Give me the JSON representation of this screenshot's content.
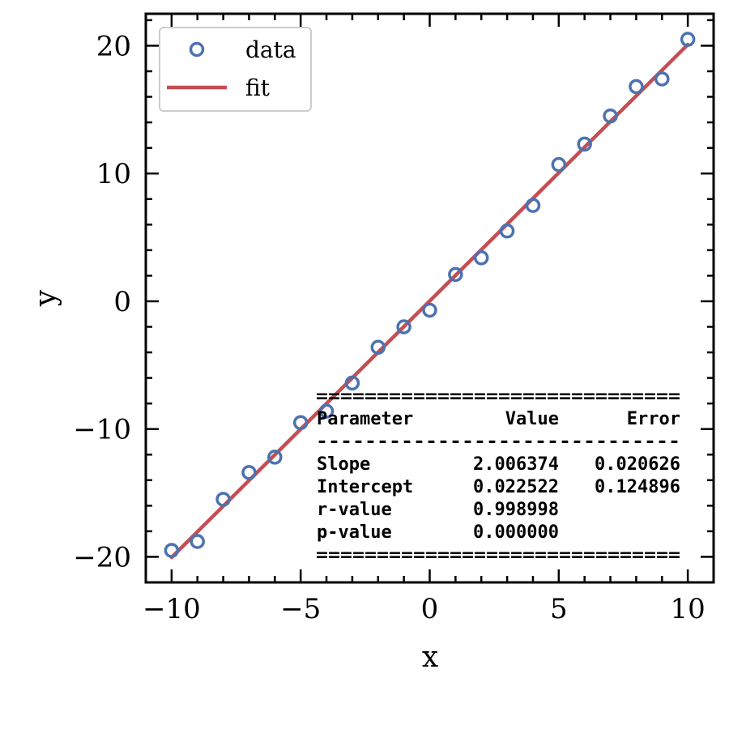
{
  "chart_data": {
    "type": "scatter",
    "xlabel": "x",
    "ylabel": "y",
    "xlim": [
      -11,
      11
    ],
    "ylim": [
      -22,
      22.5
    ],
    "xticks": [
      -10,
      -5,
      0,
      5,
      10
    ],
    "xtick_labels": [
      "−10",
      "−5",
      "0",
      "5",
      "10"
    ],
    "yticks": [
      -20,
      -10,
      0,
      10,
      20
    ],
    "ytick_labels": [
      "−20",
      "−10",
      "0",
      "10",
      "20"
    ],
    "grid": false,
    "legend_position": "upper-left",
    "series": [
      {
        "name": "data",
        "kind": "scatter",
        "color": "#4c72b0",
        "x": [
          -10,
          -9,
          -8,
          -7,
          -6,
          -5,
          -4,
          -3,
          -2,
          -1,
          0,
          1,
          2,
          3,
          4,
          5,
          6,
          7,
          8,
          9,
          10
        ],
        "y": [
          -19.5,
          -18.8,
          -15.5,
          -13.4,
          -12.2,
          -9.5,
          -8.6,
          -6.4,
          -3.6,
          -2.0,
          -0.7,
          2.1,
          3.4,
          5.5,
          7.5,
          10.7,
          12.3,
          14.5,
          16.8,
          17.4,
          20.5
        ]
      },
      {
        "name": "fit",
        "kind": "line",
        "color": "#c44e52",
        "slope": 2.006374,
        "intercept": 0.022522,
        "x": [
          -10,
          10
        ]
      }
    ],
    "annotation_table": {
      "border": "==============================",
      "separator": "------------------------------",
      "headers": [
        "Parameter",
        "Value",
        "Error"
      ],
      "rows": [
        [
          "Slope",
          "2.006374",
          "0.020626"
        ],
        [
          "Intercept",
          "0.022522",
          "0.124896"
        ],
        [
          "r-value",
          "0.998998",
          ""
        ],
        [
          "p-value",
          "0.000000",
          ""
        ]
      ]
    }
  }
}
